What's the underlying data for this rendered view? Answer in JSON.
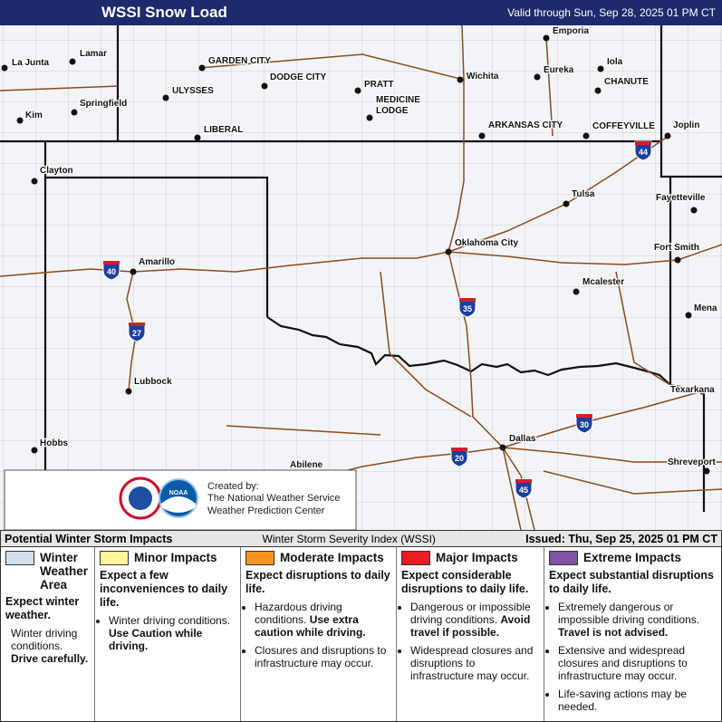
{
  "header": {
    "title": "WSSI Snow Load",
    "valid": "Valid through Sun, Sep 28, 2025 01 PM CT"
  },
  "map": {
    "cities": [
      "La Junta",
      "Lamar",
      "Kim",
      "Springfield",
      "GARDEN CITY",
      "DODGE CITY",
      "ULYSSES",
      "PRATT",
      "MEDICINE LODGE",
      "LIBERAL",
      "Wichita",
      "Emporia",
      "Eureka",
      "Iola",
      "CHANUTE",
      "ARKANSAS CITY",
      "COFFEYVILLE",
      "Joplin",
      "Clayton",
      "Tulsa",
      "Fayetteville",
      "Amarillo",
      "Oklahoma City",
      "Fort Smith",
      "Mcalester",
      "Mena",
      "Lubbock",
      "Texarkana",
      "Hobbs",
      "Dallas",
      "Abilene",
      "Shreveport"
    ],
    "interstates": [
      "40",
      "27",
      "35",
      "44",
      "20",
      "30",
      "45"
    ]
  },
  "credit": {
    "created_by": "Created by:",
    "org": "The National Weather Service",
    "center": "Weather Prediction Center",
    "noaa": "NOAA"
  },
  "legend": {
    "title": "Potential Winter Storm Impacts",
    "index": "Winter Storm Severity Index (WSSI)",
    "issued": "Issued: Thu, Sep 25, 2025 01 PM CT",
    "levels": [
      {
        "name": "Winter Weather Area",
        "color": "#d4e0e9",
        "summary": "Expect winter weather.",
        "note": {
          "text": "Winter driving conditions.",
          "bold": "Drive carefully."
        }
      },
      {
        "name": "Minor Impacts",
        "color": "#fff59b",
        "summary": "Expect a few inconveniences to daily life.",
        "bullets": [
          {
            "text": "Winter driving conditions.",
            "bold": "Use Caution while driving."
          }
        ]
      },
      {
        "name": "Moderate Impacts",
        "color": "#f7941e",
        "summary": "Expect disruptions to daily life.",
        "bullets": [
          {
            "text": "Hazardous driving conditions.",
            "bold": "Use extra caution while driving."
          },
          {
            "text": "Closures and disruptions to infrastructure may occur."
          }
        ]
      },
      {
        "name": "Major Impacts",
        "color": "#ec1c24",
        "summary": "Expect considerable disruptions to daily life.",
        "bullets": [
          {
            "text": "Dangerous or impossible driving conditions.",
            "bold": "Avoid travel if possible."
          },
          {
            "text": "Widespread closures and disruptions to infrastructure may occur."
          }
        ]
      },
      {
        "name": "Extreme Impacts",
        "color": "#7d52a1",
        "summary": "Expect substantial disruptions to daily life.",
        "bullets": [
          {
            "text": "Extremely dangerous or impossible driving conditions.",
            "bold": "Travel is not advised."
          },
          {
            "text": "Extensive and widespread closures and disruptions to infrastructure may occur."
          },
          {
            "text": "Life-saving actions may be needed."
          }
        ]
      }
    ]
  }
}
